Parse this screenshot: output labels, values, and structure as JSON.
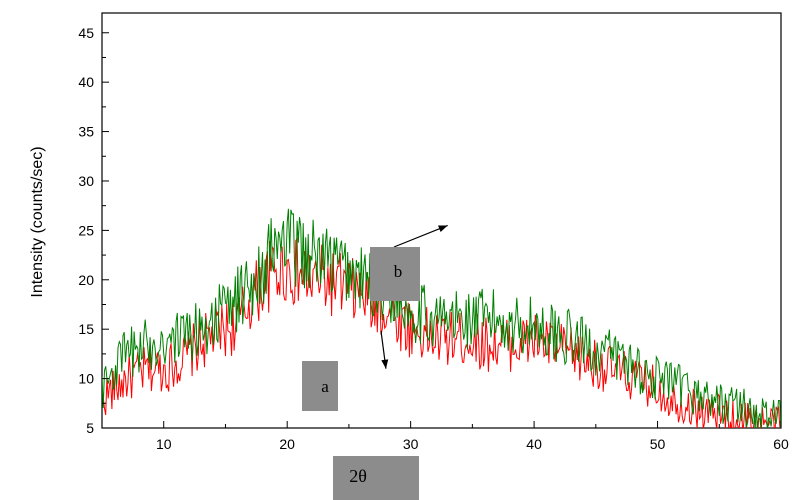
{
  "chart_data": {
    "type": "line",
    "title": "",
    "xlabel": "2θ",
    "ylabel": "Intensity (counts/sec)",
    "xlim": [
      5,
      60
    ],
    "ylim": [
      5,
      47
    ],
    "xticks": [
      10,
      20,
      30,
      40,
      50,
      60
    ],
    "yticks": [
      5,
      10,
      15,
      20,
      25,
      30,
      35,
      40,
      45
    ],
    "grid": false,
    "legend": "none",
    "series": [
      {
        "label": "a",
        "color": "#ff0000",
        "x": [
          5,
          6,
          7,
          8,
          9,
          10,
          11,
          12,
          13,
          14,
          15,
          16,
          17,
          18,
          19,
          20,
          21,
          22,
          23,
          24,
          25,
          26,
          27,
          28,
          29,
          30,
          31,
          32,
          33,
          34,
          35,
          36,
          37,
          38,
          39,
          40,
          41,
          42,
          43,
          44,
          45,
          46,
          47,
          48,
          49,
          50,
          51,
          52,
          53,
          54,
          55,
          56,
          57,
          58,
          59,
          60
        ],
        "y": [
          8,
          9,
          10,
          10.5,
          11,
          11,
          11.5,
          12.5,
          13.5,
          14.5,
          15,
          15.5,
          18,
          19.5,
          21,
          21,
          20.5,
          20,
          20,
          19.5,
          19,
          18.5,
          17.5,
          17,
          16,
          15,
          14.5,
          14,
          14,
          14,
          14,
          13.5,
          13.5,
          13.5,
          13.5,
          14,
          13.5,
          13,
          12.5,
          12,
          11.5,
          11,
          10.5,
          10,
          9.5,
          9,
          8,
          7.5,
          7,
          6.5,
          6.5,
          6,
          6,
          5.8,
          5.5,
          5.5
        ]
      },
      {
        "label": "b",
        "color": "#008000",
        "x": [
          5,
          6,
          7,
          8,
          9,
          10,
          11,
          12,
          13,
          14,
          15,
          16,
          17,
          18,
          19,
          20,
          21,
          22,
          23,
          24,
          25,
          26,
          27,
          28,
          29,
          30,
          31,
          32,
          33,
          34,
          35,
          36,
          37,
          38,
          39,
          40,
          41,
          42,
          43,
          44,
          45,
          46,
          47,
          48,
          49,
          50,
          51,
          52,
          53,
          54,
          55,
          56,
          57,
          58,
          59,
          60
        ],
        "y": [
          9,
          11,
          12.5,
          13,
          13.5,
          14,
          14,
          14.5,
          15,
          16,
          17,
          18,
          19.5,
          21,
          23.5,
          23.5,
          23,
          22.5,
          22,
          21.5,
          21,
          20,
          19.5,
          19,
          18,
          17,
          16.5,
          16,
          16,
          16,
          16,
          16,
          16,
          15.5,
          15.5,
          15.5,
          15,
          14.5,
          14,
          13.5,
          13,
          12.5,
          12,
          11.5,
          10.5,
          10,
          9.5,
          9,
          8.5,
          8,
          7.5,
          7.5,
          7,
          6.5,
          6,
          6
        ]
      }
    ],
    "annotations": [
      {
        "text": "b",
        "arrow_to": [
          33,
          25.5
        ]
      },
      {
        "text": "a",
        "arrow_to": [
          28,
          11
        ]
      }
    ]
  }
}
